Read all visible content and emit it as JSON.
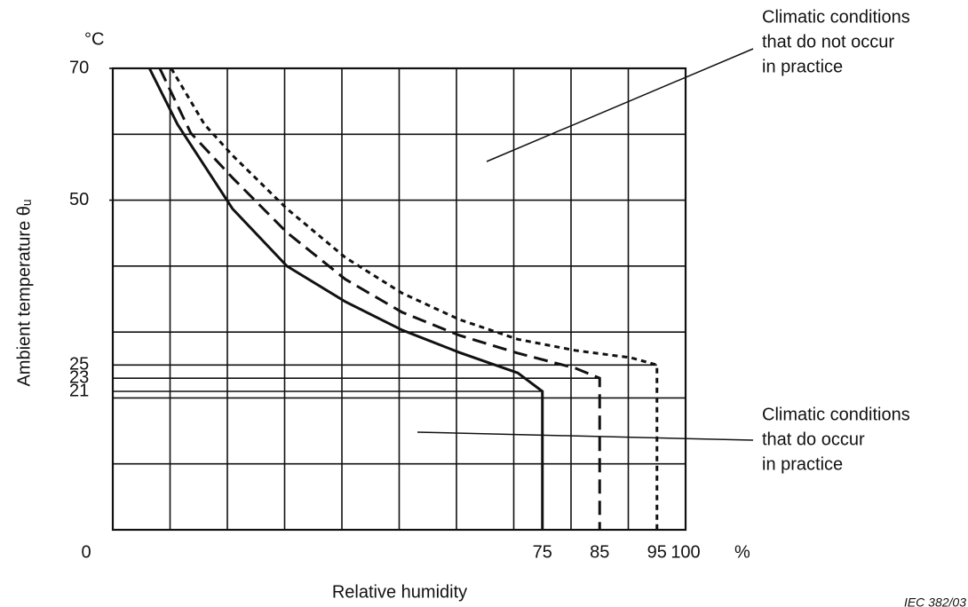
{
  "chart_data": {
    "type": "line",
    "xlabel": "Relative humidity",
    "ylabel": "Ambient temperature θᵤ",
    "y_unit": "°C",
    "x_unit": "%",
    "credit": "IEC 382/03",
    "xlim": [
      0,
      100
    ],
    "ylim": [
      0,
      70
    ],
    "xticks": [
      0,
      75,
      85,
      95,
      100
    ],
    "yticks": [
      21,
      23,
      25,
      50,
      70
    ],
    "xgrid": [
      0,
      10,
      20,
      30,
      40,
      50,
      60,
      70,
      80,
      90,
      100
    ],
    "ygrid": [
      0,
      10,
      20,
      30,
      40,
      50,
      60,
      70
    ],
    "grid": true,
    "series": [
      {
        "name": null,
        "color": "#111",
        "dash": "solid",
        "x": [
          6.4,
          11.3,
          20.9,
          30.4,
          40.6,
          50.5,
          60.5,
          70.7,
          75,
          75
        ],
        "values": [
          70,
          61.5,
          48.7,
          40.0,
          34.6,
          30.3,
          26.9,
          23.8,
          21,
          0
        ]
      },
      {
        "name": null,
        "color": "#111",
        "dash": "dashed",
        "x": [
          8.2,
          13.6,
          20.9,
          30.4,
          40.6,
          50.5,
          60.5,
          70.7,
          80.8,
          85,
          85
        ],
        "values": [
          70,
          60.2,
          53.4,
          45.1,
          38.0,
          33.0,
          29.5,
          26.8,
          24.5,
          23,
          0
        ]
      },
      {
        "name": null,
        "color": "#111",
        "dash": "dotted",
        "x": [
          10.2,
          16,
          20.9,
          30.4,
          40.6,
          50.5,
          60.5,
          70.7,
          80.8,
          90.5,
          95,
          95
        ],
        "values": [
          70,
          61.5,
          56.8,
          48.7,
          41.3,
          35.9,
          31.9,
          28.9,
          27.2,
          26.1,
          25,
          0
        ]
      }
    ],
    "annotations": [
      {
        "lines": [
          "Climatic conditions",
          "that do not occur",
          "in practice"
        ]
      },
      {
        "lines": [
          "Climatic conditions",
          "that do occur",
          "in practice"
        ]
      }
    ]
  }
}
